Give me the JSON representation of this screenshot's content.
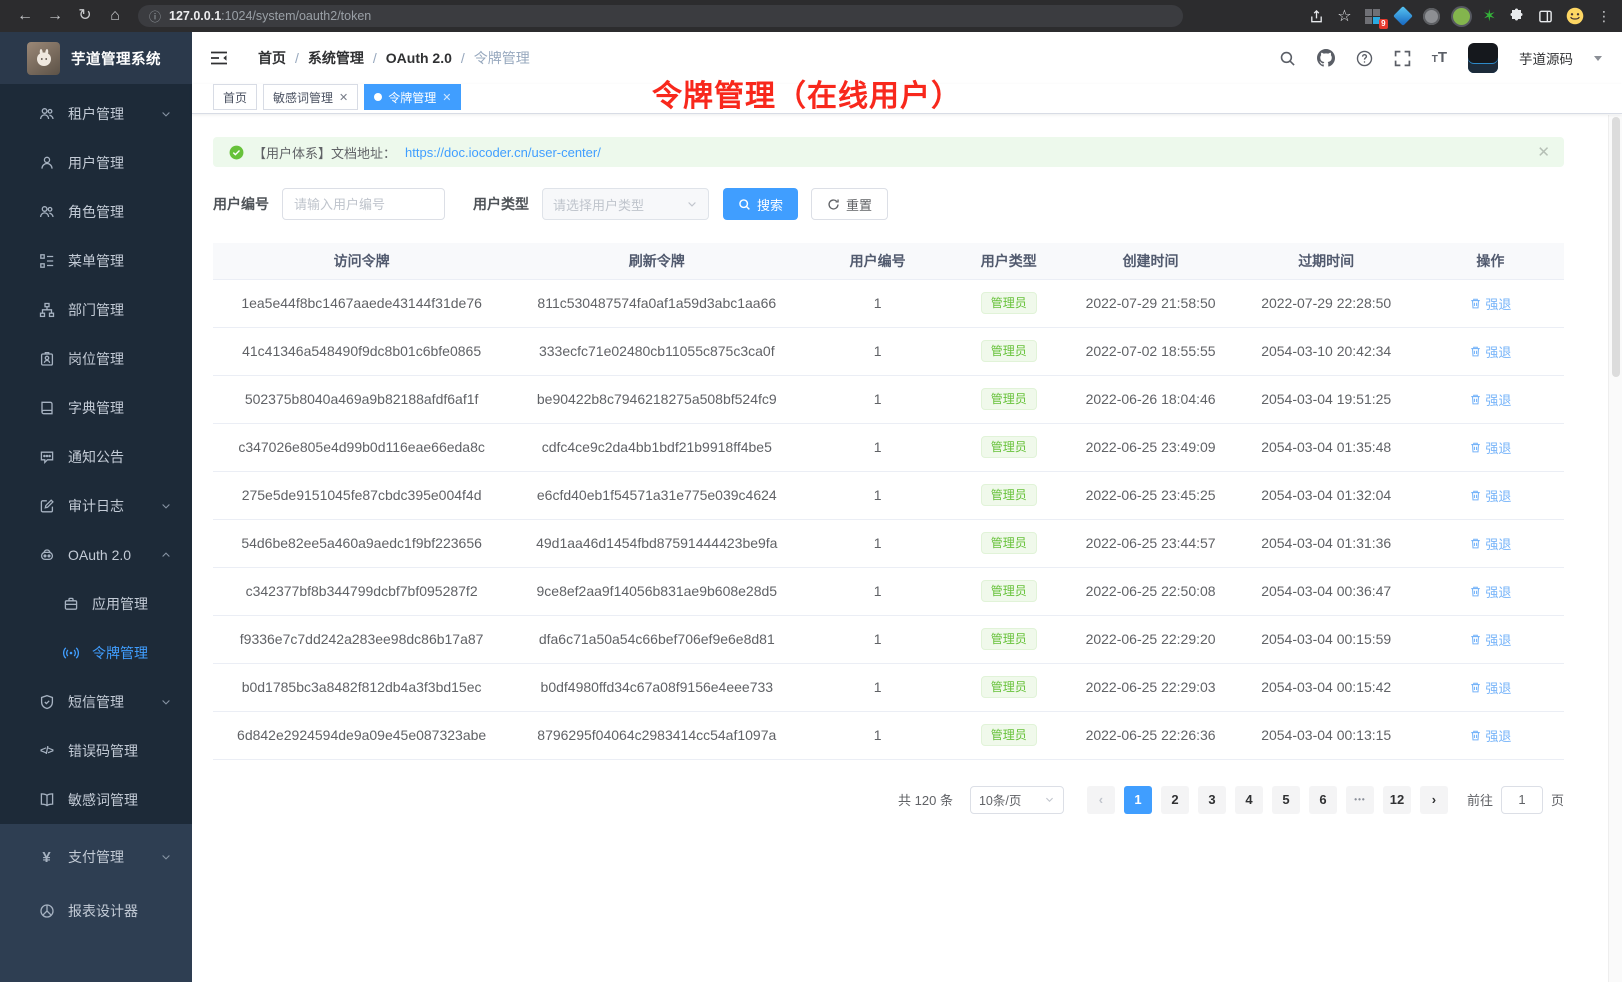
{
  "colors": {
    "accent": "#409eff",
    "success": "#67c23a",
    "annotation_red": "#f8281c",
    "sidebar_dark": "#1d2a38",
    "sidebar_light": "#2e3e52",
    "action_link": "#77b4f9"
  },
  "browser": {
    "url_host": "127.0.0.1",
    "url_rest": ":1024/system/oauth2/token",
    "extension_badge": "9"
  },
  "sidebar": {
    "logo_title": "芋道管理系统",
    "items": [
      {
        "label": "租户管理",
        "icon": "tenant-users-icon",
        "chevron": "down"
      },
      {
        "label": "用户管理",
        "icon": "user-icon"
      },
      {
        "label": "角色管理",
        "icon": "role-users-icon"
      },
      {
        "label": "菜单管理",
        "icon": "menu-tree-icon"
      },
      {
        "label": "部门管理",
        "icon": "org-tree-icon"
      },
      {
        "label": "岗位管理",
        "icon": "id-badge-icon"
      },
      {
        "label": "字典管理",
        "icon": "dictionary-icon"
      },
      {
        "label": "通知公告",
        "icon": "announcement-icon"
      },
      {
        "label": "审计日志",
        "icon": "audit-log-icon",
        "chevron": "down"
      },
      {
        "label": "OAuth 2.0",
        "icon": "oauth-robot-icon",
        "chevron": "up"
      },
      {
        "label": "应用管理",
        "icon": "app-briefcase-icon",
        "sub": true
      },
      {
        "label": "令牌管理",
        "icon": "token-broadcast-icon",
        "sub": true,
        "active": true
      },
      {
        "label": "短信管理",
        "icon": "shield-icon",
        "chevron": "down"
      },
      {
        "label": "错误码管理",
        "icon": "code-icon"
      },
      {
        "label": "敏感词管理",
        "icon": "open-book-icon"
      }
    ],
    "bottom_items": [
      {
        "label": "支付管理",
        "icon": "yen-icon",
        "chevron": "down"
      },
      {
        "label": "报表设计器",
        "icon": "report-icon"
      }
    ]
  },
  "header": {
    "breadcrumb": [
      "首页",
      "系统管理",
      "OAuth 2.0",
      "令牌管理"
    ],
    "username": "芋道源码"
  },
  "annotation": "令牌管理（在线用户）",
  "tabs": [
    {
      "label": "首页",
      "closable": false,
      "active": false
    },
    {
      "label": "敏感词管理",
      "closable": true,
      "active": false
    },
    {
      "label": "令牌管理",
      "closable": true,
      "active": true
    }
  ],
  "alert": {
    "text": "【用户体系】文档地址：",
    "link": "https://doc.iocoder.cn/user-center/"
  },
  "filters": {
    "user_id_label": "用户编号",
    "user_id_placeholder": "请输入用户编号",
    "user_type_label": "用户类型",
    "user_type_placeholder": "请选择用户类型",
    "search_label": "搜索",
    "reset_label": "重置"
  },
  "table": {
    "columns": [
      "访问令牌",
      "刷新令牌",
      "用户编号",
      "用户类型",
      "创建时间",
      "过期时间",
      "操作"
    ],
    "action_label": "强退",
    "rows": [
      {
        "access": "1ea5e44f8bc1467aaede43144f31de76",
        "refresh": "811c530487574fa0af1a59d3abc1aa66",
        "user_id": "1",
        "user_type": "管理员",
        "created": "2022-07-29 21:58:50",
        "expires": "2022-07-29 22:28:50"
      },
      {
        "access": "41c41346a548490f9dc8b01c6bfe0865",
        "refresh": "333ecfc71e02480cb11055c875c3ca0f",
        "user_id": "1",
        "user_type": "管理员",
        "created": "2022-07-02 18:55:55",
        "expires": "2054-03-10 20:42:34"
      },
      {
        "access": "502375b8040a469a9b82188afdf6af1f",
        "refresh": "be90422b8c7946218275a508bf524fc9",
        "user_id": "1",
        "user_type": "管理员",
        "created": "2022-06-26 18:04:46",
        "expires": "2054-03-04 19:51:25"
      },
      {
        "access": "c347026e805e4d99b0d116eae66eda8c",
        "refresh": "cdfc4ce9c2da4bb1bdf21b9918ff4be5",
        "user_id": "1",
        "user_type": "管理员",
        "created": "2022-06-25 23:49:09",
        "expires": "2054-03-04 01:35:48"
      },
      {
        "access": "275e5de9151045fe87cbdc395e004f4d",
        "refresh": "e6cfd40eb1f54571a31e775e039c4624",
        "user_id": "1",
        "user_type": "管理员",
        "created": "2022-06-25 23:45:25",
        "expires": "2054-03-04 01:32:04"
      },
      {
        "access": "54d6be82ee5a460a9aedc1f9bf223656",
        "refresh": "49d1aa46d1454fbd87591444423be9fa",
        "user_id": "1",
        "user_type": "管理员",
        "created": "2022-06-25 23:44:57",
        "expires": "2054-03-04 01:31:36"
      },
      {
        "access": "c342377bf8b344799dcbf7bf095287f2",
        "refresh": "9ce8ef2aa9f14056b831ae9b608e28d5",
        "user_id": "1",
        "user_type": "管理员",
        "created": "2022-06-25 22:50:08",
        "expires": "2054-03-04 00:36:47"
      },
      {
        "access": "f9336e7c7dd242a283ee98dc86b17a87",
        "refresh": "dfa6c71a50a54c66bef706ef9e6e8d81",
        "user_id": "1",
        "user_type": "管理员",
        "created": "2022-06-25 22:29:20",
        "expires": "2054-03-04 00:15:59"
      },
      {
        "access": "b0d1785bc3a8482f812db4a3f3bd15ec",
        "refresh": "b0df4980ffd34c67a08f9156e4eee733",
        "user_id": "1",
        "user_type": "管理员",
        "created": "2022-06-25 22:29:03",
        "expires": "2054-03-04 00:15:42"
      },
      {
        "access": "6d842e2924594de9a09e45e087323abe",
        "refresh": "8796295f04064c2983414cc54af1097a",
        "user_id": "1",
        "user_type": "管理员",
        "created": "2022-06-25 22:26:36",
        "expires": "2054-03-04 00:13:15"
      }
    ]
  },
  "pagination": {
    "total_label": "共 120 条",
    "page_size": "10条/页",
    "pages": [
      "1",
      "2",
      "3",
      "4",
      "5",
      "6",
      "...",
      "12"
    ],
    "active_page": "1",
    "goto_label": "前往",
    "goto_value": "1",
    "goto_unit": "页"
  }
}
